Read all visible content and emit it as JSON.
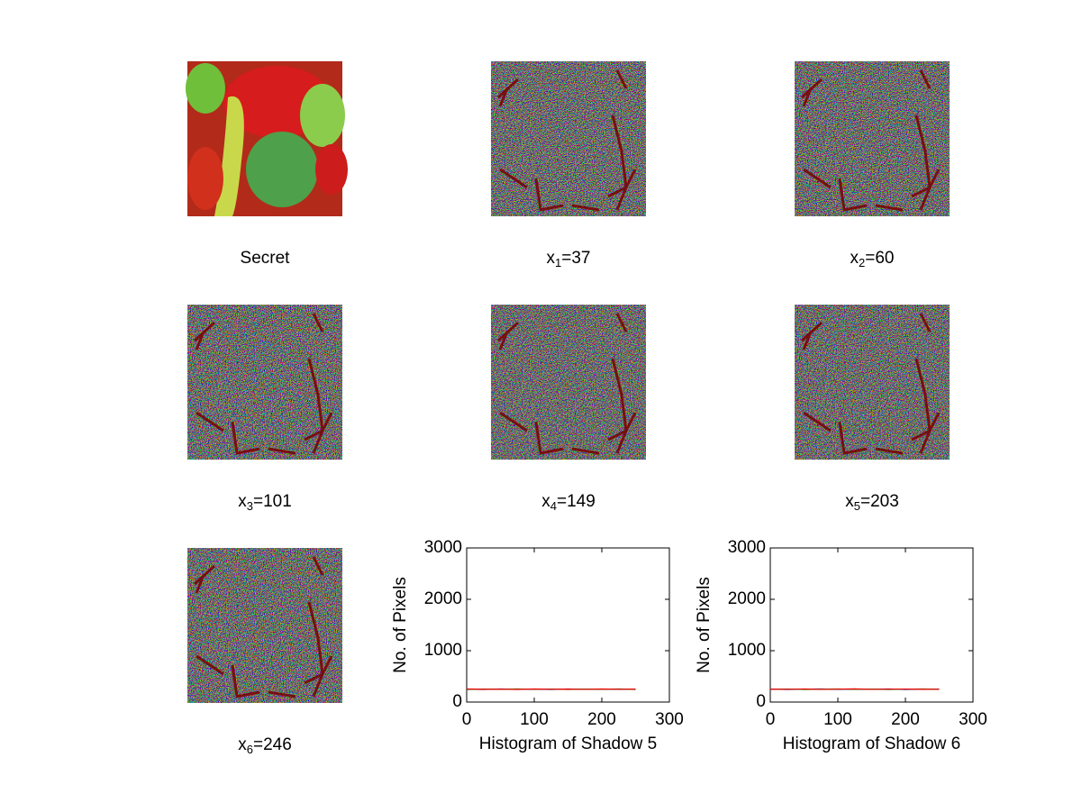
{
  "panels": [
    {
      "caption": {
        "text": "Secret"
      }
    },
    {
      "caption": {
        "base": "x",
        "sub": "1",
        "text": "=37"
      }
    },
    {
      "caption": {
        "base": "x",
        "sub": "2",
        "text": "=60"
      }
    },
    {
      "caption": {
        "base": "x",
        "sub": "3",
        "text": "=101"
      }
    },
    {
      "caption": {
        "base": "x",
        "sub": "4",
        "text": "=149"
      }
    },
    {
      "caption": {
        "base": "x",
        "sub": "5",
        "text": "=203"
      }
    },
    {
      "caption": {
        "base": "x",
        "sub": "6",
        "text": "=246"
      }
    }
  ],
  "chart_data": [
    {
      "type": "line",
      "xlabel": "Histogram of Shadow 5",
      "ylabel": "No. of Pixels",
      "x": [
        0,
        25,
        50,
        75,
        100,
        125,
        150,
        175,
        200,
        225,
        250
      ],
      "series": [
        {
          "color": "#0000ff",
          "values": [
            250,
            245,
            255,
            248,
            252,
            246,
            254,
            249,
            251,
            247,
            250
          ]
        },
        {
          "color": "#008000",
          "values": [
            245,
            252,
            248,
            255,
            247,
            253,
            246,
            252,
            248,
            254,
            246
          ]
        },
        {
          "color": "#ff0000",
          "values": [
            255,
            248,
            251,
            246,
            254,
            249,
            252,
            247,
            255,
            249,
            252
          ]
        }
      ],
      "xlim": [
        0,
        300
      ],
      "xticks": [
        0,
        100,
        200,
        300
      ],
      "ylim": [
        0,
        3000
      ],
      "yticks": [
        0,
        1000,
        2000,
        3000
      ],
      "grid": false
    },
    {
      "type": "line",
      "xlabel": "Histogram of Shadow 6",
      "ylabel": "No. of Pixels",
      "x": [
        0,
        25,
        50,
        75,
        100,
        125,
        150,
        175,
        200,
        225,
        250
      ],
      "series": [
        {
          "color": "#0000ff",
          "values": [
            252,
            246,
            250,
            254,
            247,
            251,
            249,
            255,
            246,
            250,
            253
          ]
        },
        {
          "color": "#008000",
          "values": [
            247,
            253,
            246,
            250,
            255,
            248,
            252,
            246,
            251,
            255,
            248
          ]
        },
        {
          "color": "#ff0000",
          "values": [
            250,
            249,
            254,
            247,
            251,
            256,
            247,
            251,
            253,
            248,
            251
          ]
        }
      ],
      "xlim": [
        0,
        300
      ],
      "xticks": [
        0,
        100,
        200,
        300
      ],
      "ylim": [
        0,
        3000
      ],
      "yticks": [
        0,
        1000,
        2000,
        3000
      ],
      "grid": false
    }
  ]
}
